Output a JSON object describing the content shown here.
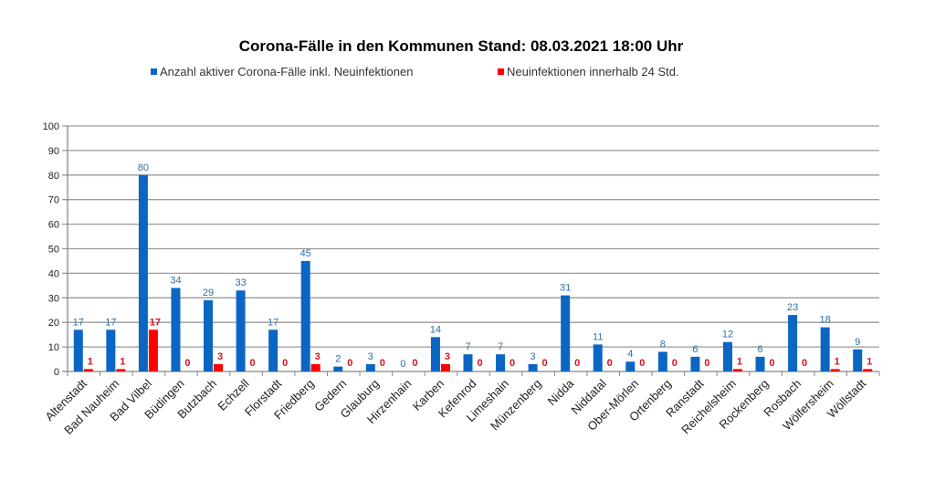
{
  "chart_data": {
    "type": "bar",
    "title": "Corona-Fälle in den Kommunen Stand: 08.03.2021 18:00 Uhr",
    "categories": [
      "Altenstadt",
      "Bad Nauheim",
      "Bad Vilbel",
      "Büdingen",
      "Butzbach",
      "Echzell",
      "Florstadt",
      "Friedberg",
      "Gedern",
      "Glauburg",
      "Hirzenhain",
      "Karben",
      "Kefenrod",
      "Limeshain",
      "Münzenberg",
      "Nidda",
      "Niddatal",
      "Ober-Mörlen",
      "Ortenberg",
      "Ranstadt",
      "Reichelsheim",
      "Rockenberg",
      "Rosbach",
      "Wölfersheim",
      "Wöllstadt"
    ],
    "series": [
      {
        "name": "Anzahl aktiver Corona-Fälle inkl. Neuinfektionen",
        "color": "#0b66c3",
        "values": [
          17,
          17,
          80,
          34,
          29,
          33,
          17,
          45,
          2,
          3,
          0,
          14,
          7,
          7,
          3,
          31,
          11,
          4,
          8,
          6,
          12,
          6,
          23,
          18,
          9
        ]
      },
      {
        "name": "Neuinfektionen innerhalb 24 Std.",
        "color": "#ff0000",
        "values": [
          1,
          1,
          17,
          0,
          3,
          0,
          0,
          3,
          0,
          0,
          0,
          3,
          0,
          0,
          0,
          0,
          0,
          0,
          0,
          0,
          1,
          0,
          0,
          1,
          1
        ]
      }
    ],
    "ylim": [
      0,
      100
    ],
    "yticks": [
      0,
      10,
      20,
      30,
      40,
      50,
      60,
      70,
      80,
      90,
      100
    ],
    "grid": true,
    "legend_position": "top",
    "data_labels": true
  }
}
